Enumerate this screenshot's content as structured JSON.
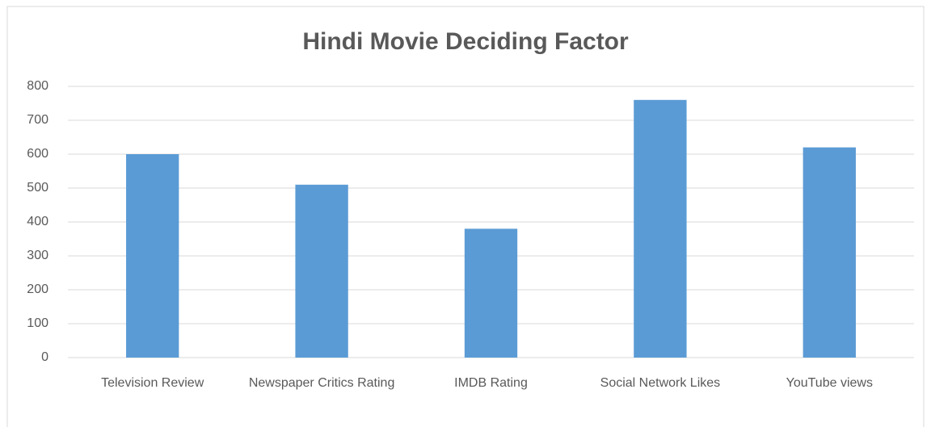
{
  "chart_data": {
    "type": "bar",
    "title": "Hindi Movie Deciding Factor",
    "categories": [
      "Television Review",
      "Newspaper Critics Rating",
      "IMDB Rating",
      "Social Network Likes",
      "YouTube views"
    ],
    "values": [
      600,
      510,
      380,
      760,
      620
    ],
    "color": "#5b9bd5",
    "ylim": [
      0,
      800
    ],
    "yticks": [
      0,
      100,
      200,
      300,
      400,
      500,
      600,
      700,
      800
    ],
    "grid": true
  }
}
